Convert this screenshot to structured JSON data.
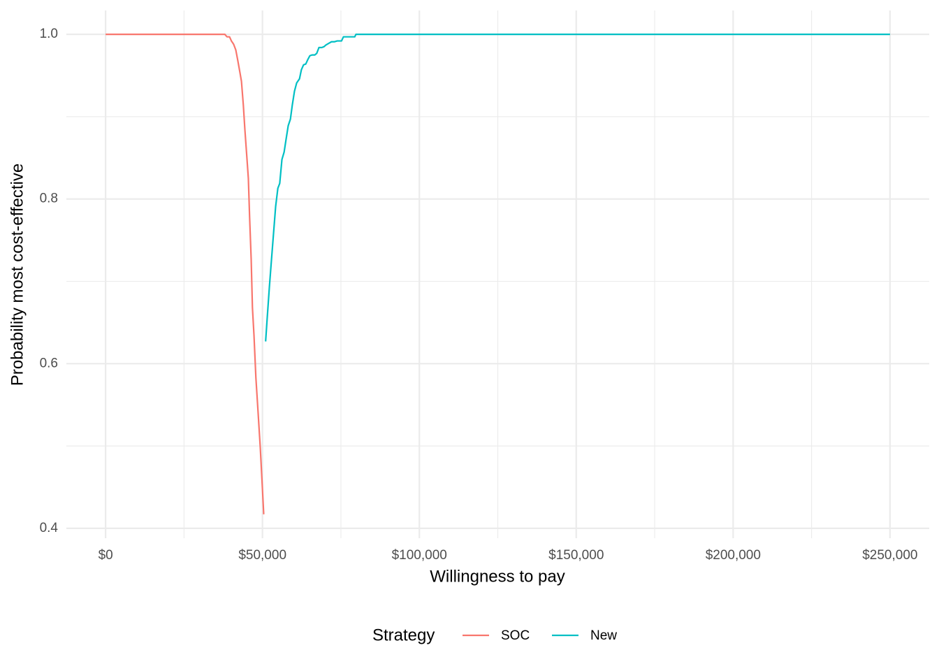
{
  "chart_data": {
    "type": "line",
    "x_label": "Willingness to pay",
    "y_label": "Probability most cost-effective",
    "legend_title": "Strategy",
    "legend": "bottom",
    "grid": true,
    "xlim": [
      -12500,
      262500
    ],
    "ylim": [
      0.388,
      1.029
    ],
    "xticks": [
      {
        "value": 0,
        "label": "$0"
      },
      {
        "value": 50000,
        "label": "$50,000"
      },
      {
        "value": 100000,
        "label": "$100,000"
      },
      {
        "value": 150000,
        "label": "$150,000"
      },
      {
        "value": 200000,
        "label": "$200,000"
      },
      {
        "value": 250000,
        "label": "$250,000"
      }
    ],
    "yticks": [
      {
        "value": 0.4,
        "label": "0.4"
      },
      {
        "value": 0.6,
        "label": "0.6"
      },
      {
        "value": 0.8,
        "label": "0.8"
      },
      {
        "value": 1,
        "label": "1.0"
      }
    ],
    "series": [
      {
        "name": "SOC",
        "color": "#f8766d",
        "x": [
          0,
          38000,
          38700,
          39500,
          40100,
          40800,
          41500,
          42100,
          42800,
          43300,
          43900,
          44400,
          45000,
          45500,
          45900,
          46400,
          46800,
          47300,
          47900,
          48600,
          49300,
          50000,
          50400
        ],
        "values": [
          1.0,
          1.0,
          0.997,
          0.997,
          0.992,
          0.988,
          0.981,
          0.969,
          0.954,
          0.943,
          0.914,
          0.884,
          0.852,
          0.825,
          0.778,
          0.727,
          0.668,
          0.634,
          0.583,
          0.541,
          0.498,
          0.447,
          0.417
        ]
      },
      {
        "name": "New",
        "color": "#00bfc4",
        "x": [
          51000,
          51500,
          52200,
          52800,
          53500,
          54200,
          54900,
          55500,
          56200,
          56900,
          57500,
          58200,
          58900,
          59500,
          60200,
          60900,
          61800,
          62400,
          63100,
          63800,
          64400,
          65100,
          65800,
          66700,
          67300,
          68000,
          68900,
          69600,
          70200,
          71100,
          72000,
          72900,
          73800,
          75200,
          75800,
          77800,
          79400,
          79800,
          250000
        ],
        "values": [
          0.627,
          0.655,
          0.693,
          0.723,
          0.757,
          0.791,
          0.813,
          0.819,
          0.848,
          0.857,
          0.872,
          0.889,
          0.897,
          0.914,
          0.931,
          0.941,
          0.946,
          0.957,
          0.963,
          0.964,
          0.969,
          0.974,
          0.975,
          0.975,
          0.977,
          0.984,
          0.984,
          0.985,
          0.987,
          0.989,
          0.991,
          0.991,
          0.992,
          0.992,
          0.997,
          0.997,
          0.997,
          1.0,
          1.0
        ]
      }
    ]
  }
}
